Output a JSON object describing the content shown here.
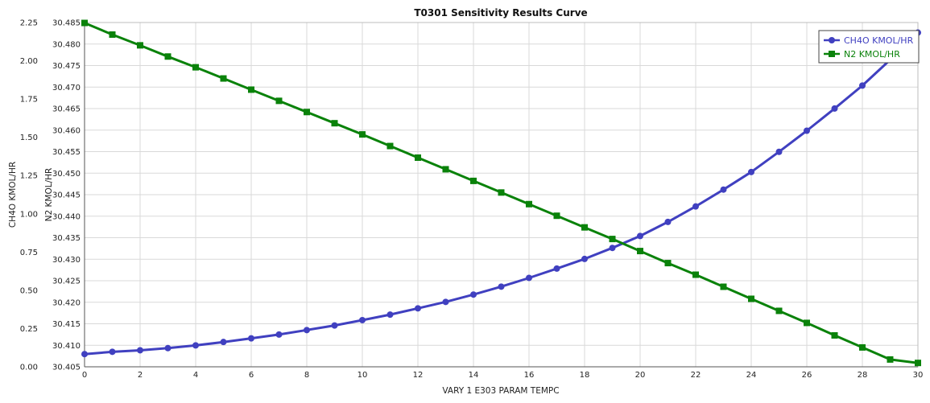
{
  "chart_data": {
    "type": "line",
    "title": "T0301 Sensitivity Results Curve",
    "xlabel": "VARY   1 E303 PARAM TEMPC",
    "xlim": [
      0,
      30
    ],
    "x_ticks": [
      "0",
      "2",
      "4",
      "6",
      "8",
      "10",
      "12",
      "14",
      "16",
      "18",
      "20",
      "22",
      "24",
      "26",
      "28",
      "30"
    ],
    "x": [
      0,
      1,
      2,
      3,
      4,
      5,
      6,
      7,
      8,
      9,
      10,
      11,
      12,
      13,
      14,
      15,
      16,
      17,
      18,
      19,
      20,
      21,
      22,
      23,
      24,
      25,
      26,
      27,
      28,
      29,
      30
    ],
    "grid": true,
    "legend_position": "top-right",
    "y_axes": [
      {
        "label": "CH4O KMOL/HR",
        "ylim": [
          0,
          2.25
        ],
        "ticks": [
          "0.00",
          "0.25",
          "0.50",
          "0.75",
          "1.00",
          "1.25",
          "1.50",
          "1.75",
          "2.00",
          "2.25"
        ]
      },
      {
        "label": "N2 KMOL/HR",
        "ylim": [
          30.405,
          30.485
        ],
        "ticks": [
          "30.405",
          "30.410",
          "30.415",
          "30.420",
          "30.425",
          "30.430",
          "30.435",
          "30.440",
          "30.445",
          "30.450",
          "30.455",
          "30.460",
          "30.465",
          "30.470",
          "30.475",
          "30.480",
          "30.485"
        ]
      }
    ],
    "series": [
      {
        "name": "CH4O KMOL/HR",
        "axis": 0,
        "color": "#4040c0",
        "marker": "circle",
        "values": [
          0.083,
          0.098,
          0.108,
          0.122,
          0.14,
          0.162,
          0.186,
          0.211,
          0.24,
          0.27,
          0.305,
          0.341,
          0.382,
          0.424,
          0.472,
          0.524,
          0.581,
          0.642,
          0.705,
          0.777,
          0.855,
          0.947,
          1.048,
          1.158,
          1.273,
          1.405,
          1.543,
          1.688,
          1.838,
          2.006,
          2.184
        ]
      },
      {
        "name": "N2 KMOL/HR",
        "axis": 1,
        "color": "#0a820a",
        "marker": "square",
        "values": [
          30.4849,
          30.4822,
          30.4797,
          30.4771,
          30.4746,
          30.472,
          30.4694,
          30.4668,
          30.4642,
          30.4616,
          30.459,
          30.4563,
          30.4536,
          30.4509,
          30.4482,
          30.4455,
          30.4428,
          30.4401,
          30.4374,
          30.4347,
          30.4319,
          30.4291,
          30.4264,
          30.4236,
          30.4208,
          30.418,
          30.4152,
          30.4123,
          30.4095,
          30.4067,
          30.4059
        ]
      }
    ]
  }
}
